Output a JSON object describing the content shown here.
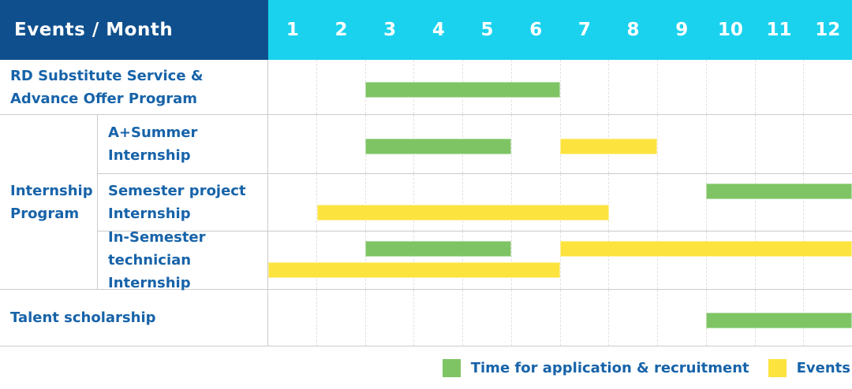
{
  "header": {
    "title": "Events / Month"
  },
  "palette": {
    "header_bg": "#0F4F8D",
    "months_bg": "#1AD2EE",
    "label_text": "#1763A9",
    "bar_green": "#7EC464",
    "bar_yellow": "#FDE33E",
    "grid_solid": "#CBCBCB",
    "grid_dashed": "#E1E1E1"
  },
  "chart_data": {
    "type": "bar",
    "variant": "gantt",
    "title": "Events / Month",
    "x_ticks": [
      "1",
      "2",
      "3",
      "4",
      "5",
      "6",
      "7",
      "8",
      "9",
      "10",
      "11",
      "12"
    ],
    "x_range": [
      1,
      12
    ],
    "grid": "vertical-dashed",
    "row_group": {
      "label": "Internship Program",
      "label_lines": [
        "Internship",
        "Program"
      ]
    },
    "rows": [
      {
        "group": null,
        "label": "RD Substitute Service & Advance Offer Program",
        "label_lines": [
          "RD Substitute Service &",
          "Advance Offer Program"
        ],
        "bars": [
          {
            "series": "application",
            "start_month": 3,
            "end_month": 6,
            "lane": "single"
          }
        ]
      },
      {
        "group": "Internship Program",
        "label": "A+Summer Internship",
        "label_lines": [
          "A+Summer",
          "Internship"
        ],
        "bars": [
          {
            "series": "application",
            "start_month": 3,
            "end_month": 5,
            "lane": "single"
          },
          {
            "series": "events",
            "start_month": 7,
            "end_month": 8,
            "lane": "single"
          }
        ]
      },
      {
        "group": "Internship Program",
        "label": "Semester project Internship",
        "label_lines": [
          "Semester project",
          "Internship"
        ],
        "bars": [
          {
            "series": "application",
            "start_month": 10,
            "end_month": 12,
            "lane": "upper"
          },
          {
            "series": "events",
            "start_month": 2,
            "end_month": 7,
            "lane": "lower"
          }
        ]
      },
      {
        "group": "Internship Program",
        "label": "In-Semester technician Internship",
        "label_lines": [
          "In-Semester",
          "technician Internship"
        ],
        "bars": [
          {
            "series": "application",
            "start_month": 3,
            "end_month": 5,
            "lane": "upper"
          },
          {
            "series": "events",
            "start_month": 7,
            "end_month": 12,
            "lane": "upper"
          },
          {
            "series": "events",
            "start_month": 1,
            "end_month": 6,
            "lane": "lower"
          }
        ]
      },
      {
        "group": null,
        "label": "Talent scholarship",
        "label_lines": [
          "Talent scholarship"
        ],
        "bars": [
          {
            "series": "application",
            "start_month": 10,
            "end_month": 12,
            "lane": "single"
          }
        ]
      }
    ],
    "legend": [
      {
        "key": "application",
        "label": "Time for application & recruitment",
        "color": "#7EC464"
      },
      {
        "key": "events",
        "label": "Events",
        "color": "#FDE33E"
      }
    ],
    "legend_position": "bottom-right"
  }
}
